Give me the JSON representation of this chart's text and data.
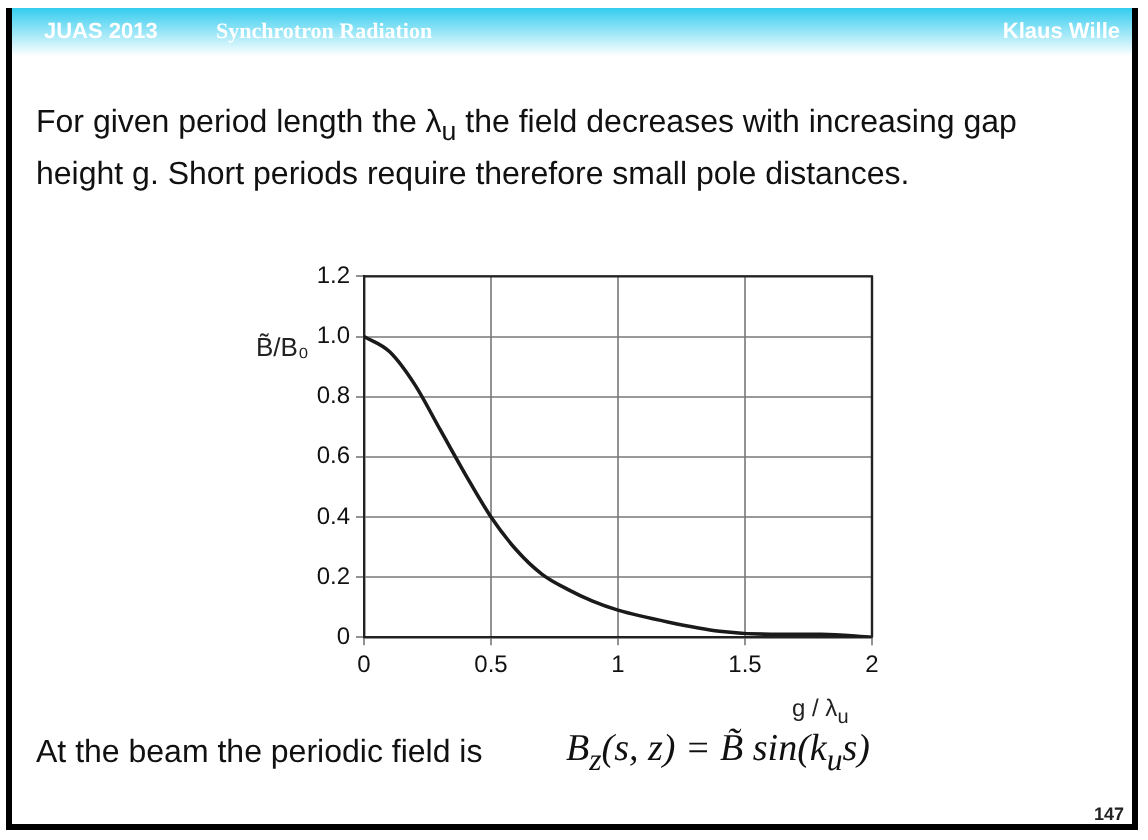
{
  "chart_data": {
    "type": "line",
    "xlabel": "g / λ$_{u}$",
    "ylabel": "B̃/B₀",
    "x": [
      0,
      0.1,
      0.2,
      0.3,
      0.4,
      0.5,
      0.6,
      0.7,
      0.8,
      0.9,
      1.0,
      1.2,
      1.4,
      1.6,
      1.8,
      2.0
    ],
    "series": [
      {
        "color": "#1a1a1a",
        "values": [
          1.0,
          0.95,
          0.84,
          0.69,
          0.54,
          0.4,
          0.29,
          0.21,
          0.16,
          0.12,
          0.09,
          0.05,
          0.02,
          0.01,
          0.01,
          0.0
        ]
      }
    ],
    "xlim": [
      0,
      2
    ],
    "xticks": [
      0,
      0.5,
      1,
      1.5,
      2
    ],
    "ylim": [
      0,
      1.2
    ],
    "yticks": [
      0,
      0.2,
      0.4,
      0.6,
      0.8,
      {
        "value": 1,
        "label": "1.0"
      },
      1.2
    ],
    "grid": true,
    "legend": false,
    "marker": "none",
    "line_style": "solid",
    "annotations": [
      "JUAS 2013",
      "Synchrotron  Radiation",
      "Klaus Wille",
      "For given period length the λ$_{u}$ the field decreases with increasing gap height g. Short periods require therefore small pole distances.",
      "At the beam the periodic field is",
      "B$_{z}$(s, z) = B̃ sin(k$_{u}$s)",
      "147"
    ]
  }
}
